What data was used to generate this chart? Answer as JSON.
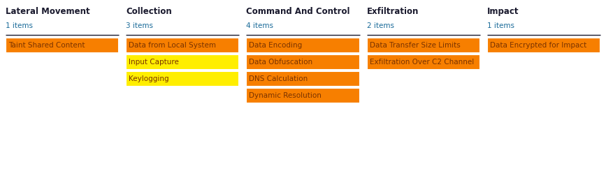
{
  "columns": [
    {
      "title": "Lateral Movement",
      "count": "1 items",
      "items": [
        {
          "label": "Taint Shared Content",
          "color": "#f77f00"
        }
      ]
    },
    {
      "title": "Collection",
      "count": "3 items",
      "items": [
        {
          "label": "Data from Local System",
          "color": "#f77f00"
        },
        {
          "label": "Input Capture",
          "color": "#ffee00"
        },
        {
          "label": "Keylogging",
          "color": "#ffee00"
        }
      ]
    },
    {
      "title": "Command And Control",
      "count": "4 items",
      "items": [
        {
          "label": "Data Encoding",
          "color": "#f77f00"
        },
        {
          "label": "Data Obfuscation",
          "color": "#f77f00"
        },
        {
          "label": "DNS Calculation",
          "color": "#f77f00"
        },
        {
          "label": "Dynamic Resolution",
          "color": "#f77f00"
        }
      ]
    },
    {
      "title": "Exfiltration",
      "count": "2 items",
      "items": [
        {
          "label": "Data Transfer Size Limits",
          "color": "#f77f00"
        },
        {
          "label": "Exfiltration Over C2 Channel",
          "color": "#f77f00"
        }
      ]
    },
    {
      "title": "Impact",
      "count": "1 items",
      "items": [
        {
          "label": "Data Encrypted for Impact",
          "color": "#f77f00"
        }
      ]
    }
  ],
  "title_fontsize": 8.5,
  "count_fontsize": 7.5,
  "item_fontsize": 7.5,
  "title_color": "#1a1a2e",
  "count_color": "#1a6b99",
  "item_text_color": "#7a3300",
  "bg_color": "#ffffff",
  "divider_color": "#1a1a2e",
  "fig_width": 8.67,
  "fig_height": 2.45,
  "dpi": 100
}
